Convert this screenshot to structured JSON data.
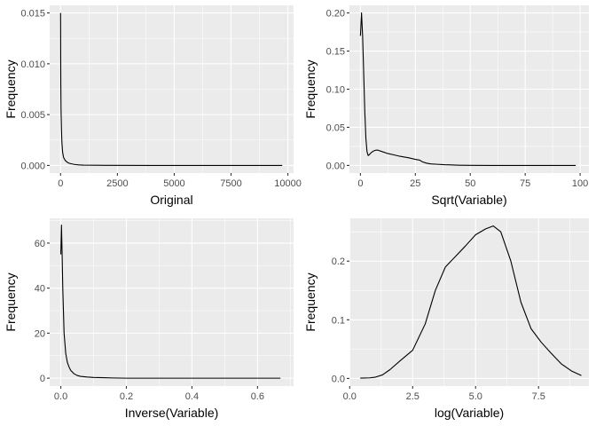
{
  "chart_data": [
    {
      "type": "line",
      "xlabel": "Original",
      "ylabel": "Frequency",
      "xlim": [
        -480,
        10250
      ],
      "ylim": [
        -0.00075,
        0.01575
      ],
      "xticks": [
        0,
        2500,
        5000,
        7500,
        10000
      ],
      "xtick_labels": [
        "0",
        "2500",
        "5000",
        "7500",
        "10000"
      ],
      "yticks": [
        0,
        0.005,
        0.01,
        0.015
      ],
      "ytick_labels": [
        "0.000",
        "0.005",
        "0.010",
        "0.015"
      ],
      "grid": true,
      "x": [
        0,
        2,
        5,
        10,
        20,
        40,
        60,
        90,
        130,
        200,
        300,
        400,
        600,
        800,
        1000,
        2000,
        4000,
        6000,
        8000,
        9750
      ],
      "y": [
        0.015,
        0.014,
        0.011,
        0.008,
        0.0055,
        0.0035,
        0.0022,
        0.0013,
        0.0008,
        0.0005,
        0.0003,
        0.0002,
        0.0001,
        5e-05,
        3e-05,
        1e-05,
        0,
        0,
        0,
        0
      ]
    },
    {
      "type": "line",
      "xlabel": "Sqrt(Variable)",
      "ylabel": "Frequency",
      "xlim": [
        -5,
        104
      ],
      "ylim": [
        -0.01,
        0.21
      ],
      "xticks": [
        0,
        25,
        50,
        75,
        100
      ],
      "xtick_labels": [
        "0",
        "25",
        "50",
        "75",
        "100"
      ],
      "yticks": [
        0,
        0.05,
        0.1,
        0.15,
        0.2
      ],
      "ytick_labels": [
        "0.00",
        "0.05",
        "0.10",
        "0.15",
        "0.20"
      ],
      "grid": true,
      "x": [
        0,
        0.5,
        1,
        1.5,
        2,
        2.5,
        3,
        3.5,
        4,
        5,
        6,
        7,
        8,
        10,
        12,
        15,
        18,
        20,
        22,
        25,
        27,
        28,
        30,
        32,
        35,
        38,
        40,
        45,
        50,
        60,
        70,
        80,
        90,
        98
      ],
      "y": [
        0.17,
        0.2,
        0.17,
        0.12,
        0.07,
        0.035,
        0.018,
        0.013,
        0.014,
        0.017,
        0.019,
        0.02,
        0.02,
        0.018,
        0.016,
        0.014,
        0.012,
        0.011,
        0.01,
        0.008,
        0.007,
        0.005,
        0.003,
        0.002,
        0.0015,
        0.001,
        0.0008,
        0.0003,
        0.0001,
        0,
        0,
        0,
        0,
        0
      ]
    },
    {
      "type": "line",
      "xlabel": "Inverse(Variable)",
      "ylabel": "Frequency",
      "xlim": [
        -0.034,
        0.71
      ],
      "ylim": [
        -3.5,
        71
      ],
      "xticks": [
        0,
        0.2,
        0.4,
        0.6
      ],
      "xtick_labels": [
        "0.0",
        "0.2",
        "0.4",
        "0.6"
      ],
      "yticks": [
        0,
        20,
        40,
        60
      ],
      "ytick_labels": [
        "0",
        "20",
        "40",
        "60"
      ],
      "grid": true,
      "x": [
        0,
        0.002,
        0.004,
        0.006,
        0.008,
        0.01,
        0.015,
        0.02,
        0.025,
        0.03,
        0.04,
        0.05,
        0.06,
        0.08,
        0.1,
        0.13,
        0.16,
        0.2,
        0.3,
        0.4,
        0.5,
        0.6,
        0.67
      ],
      "y": [
        55,
        68,
        55,
        40,
        30,
        20,
        11,
        7,
        5,
        3.5,
        2,
        1.2,
        0.8,
        0.5,
        0.3,
        0.2,
        0.1,
        0,
        0,
        0,
        0,
        0,
        0
      ]
    },
    {
      "type": "line",
      "xlabel": "log(Variable)",
      "ylabel": "Frequency",
      "xlim": [
        -0.01,
        9.5
      ],
      "ylim": [
        -0.013,
        0.273
      ],
      "xticks": [
        0,
        2.5,
        5,
        7.5
      ],
      "xtick_labels": [
        "0.0",
        "2.5",
        "5.0",
        "7.5"
      ],
      "yticks": [
        0,
        0.1,
        0.2
      ],
      "ytick_labels": [
        "0.0",
        "0.1",
        "0.2"
      ],
      "grid": true,
      "x": [
        0.42,
        0.8,
        1.0,
        1.3,
        1.6,
        2.0,
        2.5,
        3.0,
        3.4,
        3.8,
        4.2,
        4.6,
        5.0,
        5.4,
        5.7,
        6.0,
        6.4,
        6.8,
        7.2,
        7.6,
        8.0,
        8.4,
        8.8,
        9.2
      ],
      "y": [
        0.0005,
        0.001,
        0.002,
        0.006,
        0.015,
        0.03,
        0.048,
        0.093,
        0.15,
        0.19,
        0.208,
        0.226,
        0.245,
        0.255,
        0.26,
        0.25,
        0.2,
        0.13,
        0.085,
        0.062,
        0.043,
        0.025,
        0.013,
        0.005
      ]
    }
  ]
}
